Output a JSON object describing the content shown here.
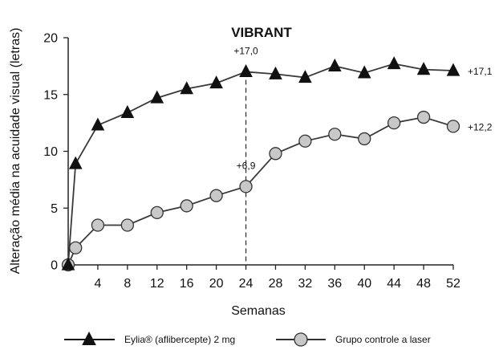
{
  "chart_data": {
    "type": "line",
    "title": "VIBRANT",
    "xlabel": "Semanas",
    "ylabel": "Alteração média na acuidade visual (letras)",
    "xlim": [
      0,
      52
    ],
    "ylim": [
      0,
      20
    ],
    "x_ticks": [
      4,
      8,
      12,
      16,
      20,
      24,
      28,
      32,
      36,
      40,
      44,
      48,
      52
    ],
    "x_tick_labels": [
      "4",
      "8",
      "12",
      "16",
      "20",
      "24",
      "28",
      "32",
      "36",
      "40",
      "44",
      "48",
      "52"
    ],
    "y_ticks": [
      0,
      5,
      10,
      15,
      20
    ],
    "y_tick_labels": [
      "0",
      "5",
      "10",
      "15",
      "20"
    ],
    "grid": false,
    "legend_position": "bottom",
    "series": [
      {
        "name": "Eylia® (aflibercepte) 2 mg",
        "marker": "triangle",
        "color": "#111111",
        "x": [
          0,
          1,
          4,
          8,
          12,
          16,
          20,
          24,
          28,
          32,
          36,
          40,
          44,
          48,
          52
        ],
        "y": [
          0,
          8.9,
          12.3,
          13.4,
          14.7,
          15.5,
          16.0,
          17.0,
          16.8,
          16.5,
          17.5,
          16.9,
          17.7,
          17.2,
          17.1
        ]
      },
      {
        "name": "Grupo controle a laser",
        "marker": "circle",
        "color": "#111111",
        "fill": "#c8c8c8",
        "x": [
          0,
          1,
          4,
          8,
          12,
          16,
          20,
          24,
          28,
          32,
          36,
          40,
          44,
          48,
          52
        ],
        "y": [
          0,
          1.5,
          3.5,
          3.5,
          4.6,
          5.2,
          6.1,
          6.9,
          9.8,
          10.9,
          11.5,
          11.1,
          12.5,
          13.0,
          12.2
        ]
      }
    ],
    "annotations": [
      {
        "text": "+17,0",
        "x": 24,
        "y": 17.0,
        "position": "above"
      },
      {
        "text": "+6,9",
        "x": 24,
        "y": 6.9,
        "position": "above"
      },
      {
        "text": "+17,1",
        "x": 52,
        "y": 17.1,
        "position": "right"
      },
      {
        "text": "+12,2",
        "x": 52,
        "y": 12.2,
        "position": "right"
      }
    ],
    "reference_line": {
      "x": 24,
      "style": "dashed"
    }
  }
}
